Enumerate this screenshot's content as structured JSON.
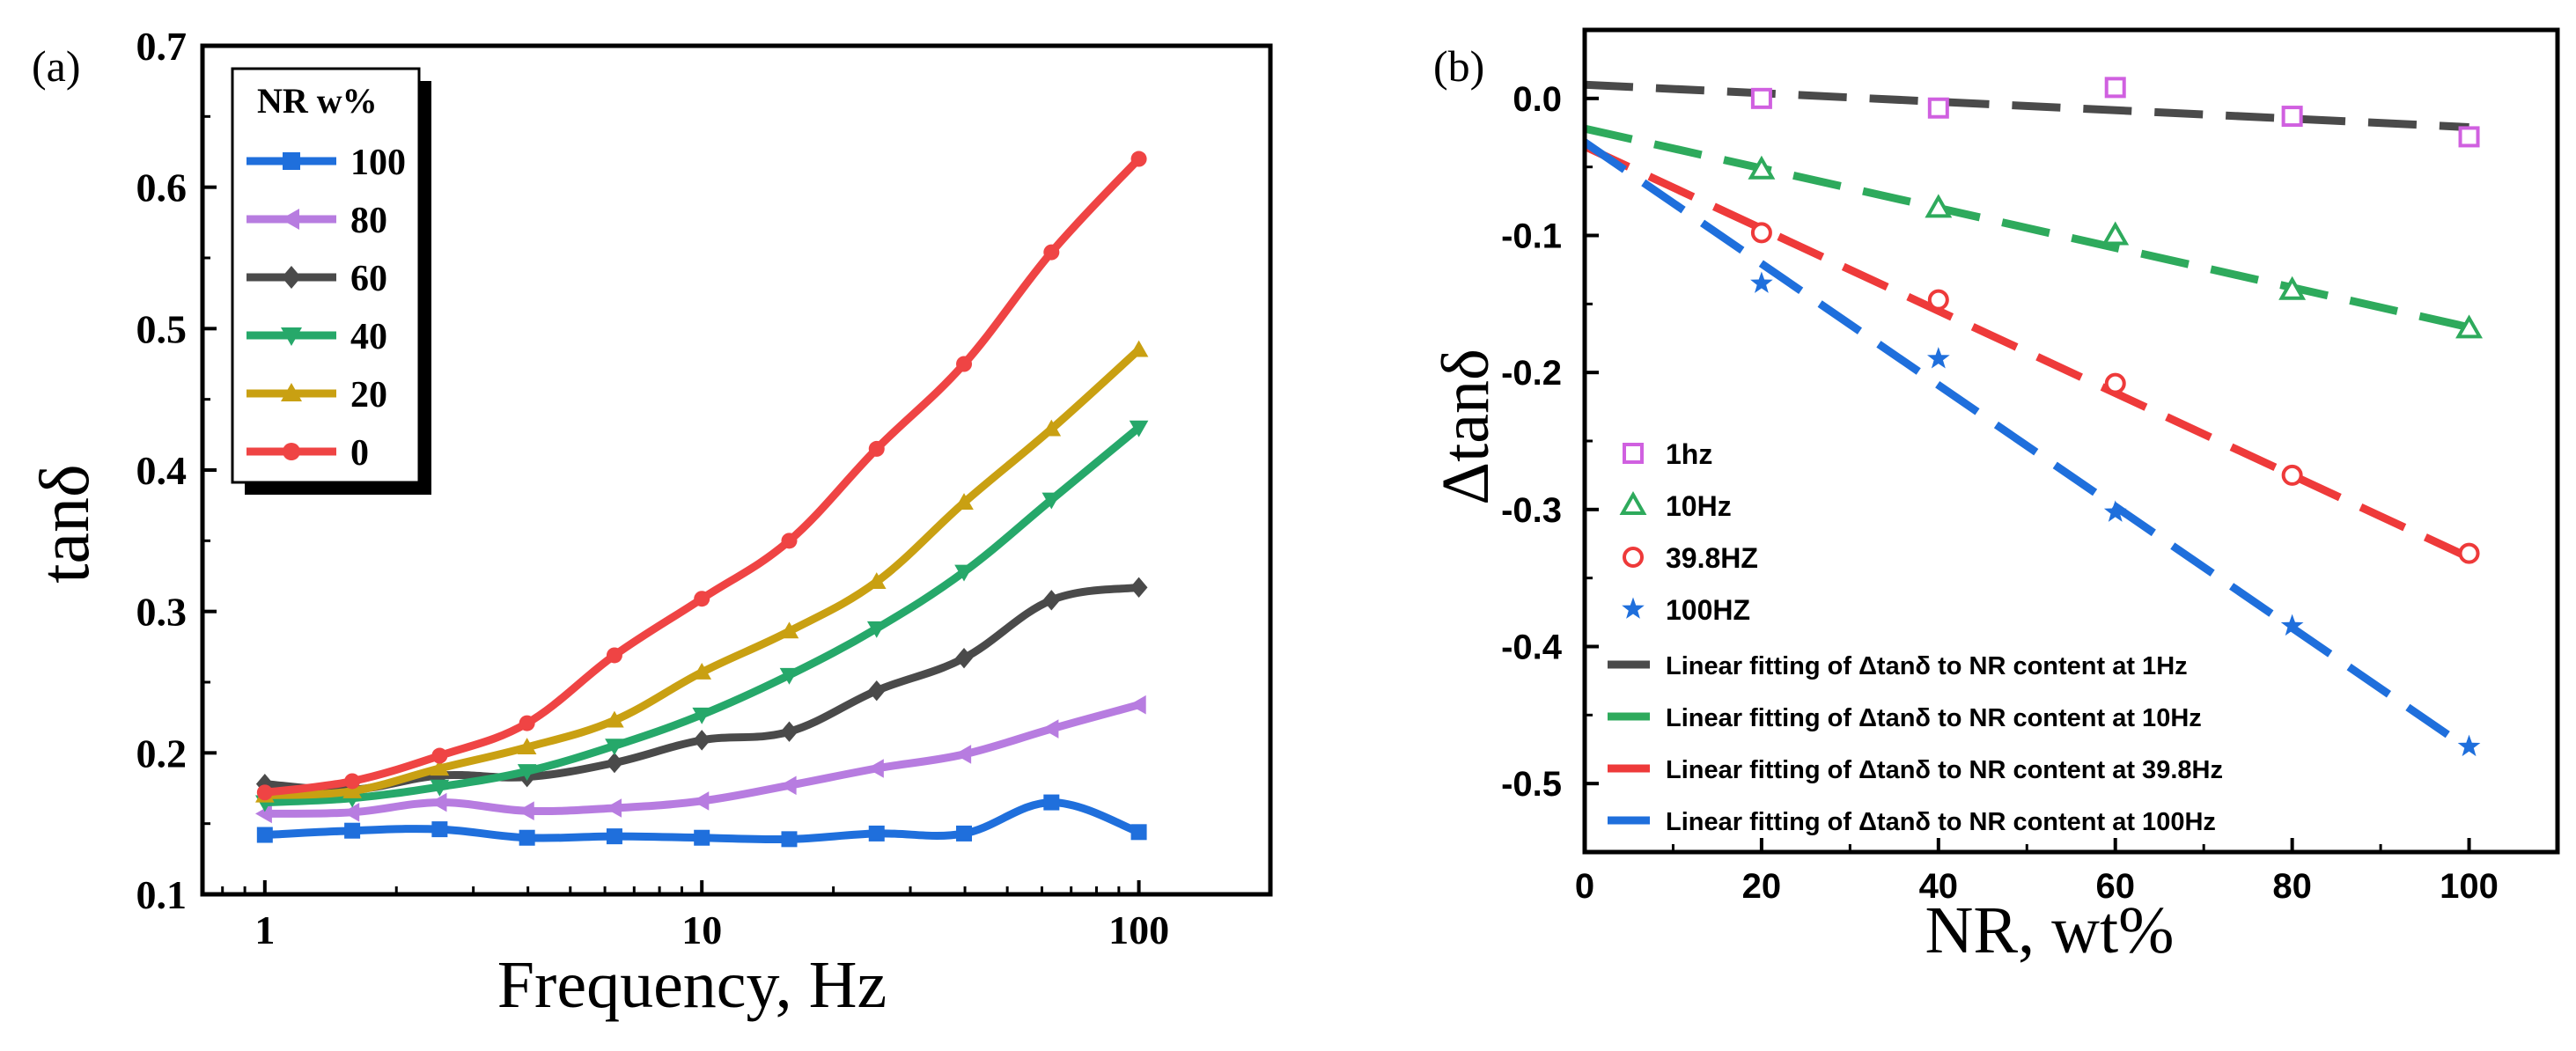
{
  "panels": {
    "a": {
      "label": "(a)",
      "chart_data": {
        "type": "line",
        "xscale": "log",
        "xlabel": "Frequency, Hz",
        "ylabel": "tanδ",
        "xlim": [
          0.72,
          200
        ],
        "ylim": [
          0.1,
          0.7
        ],
        "xticks": [
          1,
          10,
          100
        ],
        "xtick_labels": [
          "1",
          "10",
          "100"
        ],
        "yticks": [
          0.1,
          0.2,
          0.3,
          0.4,
          0.5,
          0.6,
          0.7
        ],
        "ytick_labels": [
          "0.1",
          "0.2",
          "0.3",
          "0.4",
          "0.5",
          "0.6",
          "0.7"
        ],
        "legend_title": "NR w%",
        "legend_position": "top-left",
        "x": [
          1,
          1.585,
          2.512,
          3.981,
          6.31,
          10,
          15.85,
          25.12,
          39.81,
          63.1,
          100
        ],
        "series": [
          {
            "name": "100",
            "color": "#1f6fdc",
            "marker": "square",
            "values": [
              0.142,
              0.145,
              0.146,
              0.14,
              0.141,
              0.14,
              0.139,
              0.143,
              0.143,
              0.165,
              0.144
            ]
          },
          {
            "name": "80",
            "color": "#b77ce0",
            "marker": "triangle-left",
            "values": [
              0.157,
              0.158,
              0.165,
              0.159,
              0.161,
              0.166,
              0.177,
              0.189,
              0.199,
              0.217,
              0.234
            ]
          },
          {
            "name": "60",
            "color": "#4a4a4a",
            "marker": "diamond",
            "values": [
              0.178,
              0.174,
              0.184,
              0.183,
              0.193,
              0.209,
              0.215,
              0.244,
              0.267,
              0.308,
              0.317
            ]
          },
          {
            "name": "40",
            "color": "#26a86a",
            "marker": "triangle-down",
            "values": [
              0.165,
              0.168,
              0.176,
              0.187,
              0.205,
              0.227,
              0.255,
              0.288,
              0.328,
              0.379,
              0.43
            ]
          },
          {
            "name": "20",
            "color": "#c9a012",
            "marker": "triangle-up",
            "values": [
              0.17,
              0.173,
              0.189,
              0.204,
              0.223,
              0.257,
              0.286,
              0.321,
              0.377,
              0.429,
              0.485
            ]
          },
          {
            "name": "0",
            "color": "#ef4444",
            "marker": "circle",
            "values": [
              0.172,
              0.18,
              0.198,
              0.221,
              0.269,
              0.309,
              0.35,
              0.415,
              0.475,
              0.554,
              0.62
            ]
          }
        ]
      }
    },
    "b": {
      "label": "(b)",
      "chart_data": {
        "type": "scatter",
        "xlabel": "NR, wt%",
        "ylabel": "Δtanδ",
        "xlim": [
          0,
          110
        ],
        "ylim": [
          -0.55,
          0.05
        ],
        "xticks": [
          0,
          20,
          40,
          60,
          80,
          100
        ],
        "xtick_labels": [
          "0",
          "20",
          "40",
          "60",
          "80",
          "100"
        ],
        "yticks": [
          0,
          -0.1,
          -0.2,
          -0.3,
          -0.4,
          -0.5
        ],
        "ytick_labels": [
          "0.0",
          "-0.1",
          "-0.2",
          "-0.3",
          "-0.4",
          "-0.5"
        ],
        "legend_position": "bottom-left",
        "x": [
          20,
          40,
          60,
          80,
          100
        ],
        "series": [
          {
            "name": "1hz",
            "color": "#d060e0",
            "marker": "open-square",
            "values": [
              0.0,
              -0.007,
              0.008,
              -0.013,
              -0.028
            ]
          },
          {
            "name": "10Hz",
            "color": "#2eaa5c",
            "marker": "open-triangle",
            "values": [
              -0.052,
              -0.08,
              -0.1,
              -0.14,
              -0.168
            ]
          },
          {
            "name": "39.8HZ",
            "color": "#ee3a3a",
            "marker": "open-circle",
            "values": [
              -0.098,
              -0.147,
              -0.208,
              -0.275,
              -0.332
            ]
          },
          {
            "name": "100HZ",
            "color": "#1f6fdc",
            "marker": "star",
            "values": [
              -0.135,
              -0.19,
              -0.302,
              -0.385,
              -0.473
            ]
          }
        ],
        "fits": [
          {
            "name": "Linear fitting of Δtanδ to NR content at 1Hz",
            "color": "#4a4a4a",
            "x": [
              0,
              100
            ],
            "y": [
              0.01,
              -0.021
            ]
          },
          {
            "name": "Linear fitting of Δtanδ to NR content at 10Hz",
            "color": "#2eaa5c",
            "x": [
              0,
              100
            ],
            "y": [
              -0.022,
              -0.167
            ]
          },
          {
            "name": "Linear fitting of Δtanδ to NR content at 39.8Hz",
            "color": "#ee3a3a",
            "x": [
              0,
              100
            ],
            "y": [
              -0.035,
              -0.335
            ]
          },
          {
            "name": "Linear fitting of Δtanδ to NR content at 100Hz",
            "color": "#1f6fdc",
            "x": [
              0,
              100
            ],
            "y": [
              -0.032,
              -0.475
            ]
          }
        ]
      }
    }
  }
}
